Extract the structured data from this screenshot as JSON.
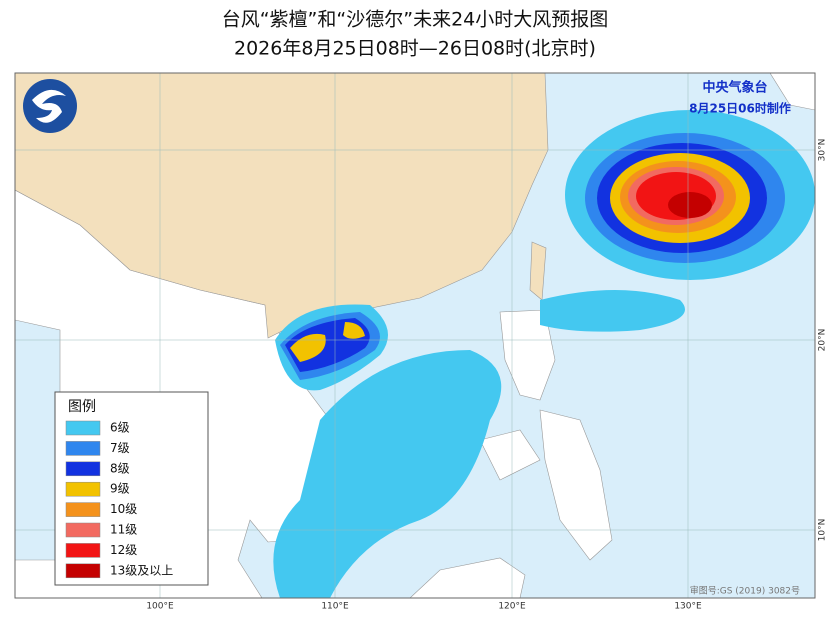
{
  "header": {
    "title": "台风“紫檀”和“沙德尔”未来24小时大风预报图",
    "subtitle": "2026年8月25日08时—26日08时(北京时)"
  },
  "agency": {
    "name": "中央气象台",
    "issued": "8月25日06时制作"
  },
  "legend": {
    "title": "图例",
    "items": [
      {
        "label": "6级",
        "color": "#44c8f0"
      },
      {
        "label": "7级",
        "color": "#2f86ee"
      },
      {
        "label": "8级",
        "color": "#1232e0"
      },
      {
        "label": "9级",
        "color": "#f2c200"
      },
      {
        "label": "10级",
        "color": "#f4921c"
      },
      {
        "label": "11级",
        "color": "#f26a60"
      },
      {
        "label": "12级",
        "color": "#f21414"
      },
      {
        "label": "13级及以上",
        "color": "#c40000"
      }
    ]
  },
  "axes": {
    "longitude": [
      "100°E",
      "110°E",
      "120°E",
      "130°E"
    ],
    "latitude": [
      "30°N",
      "20°N",
      "10°N"
    ]
  },
  "credit": "审图号:GS (2019) 3082号"
}
